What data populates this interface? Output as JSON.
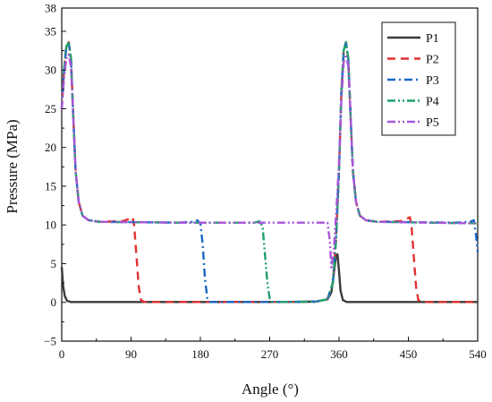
{
  "chart_data": {
    "type": "line",
    "title": "",
    "xlabel": "Angle (°)",
    "ylabel": "Pressure (MPa)",
    "xlim": [
      0,
      540
    ],
    "ylim": [
      -5,
      38
    ],
    "xticks": [
      "0",
      "90",
      "180",
      "270",
      "360",
      "450",
      "540"
    ],
    "yticks": [
      "−5",
      "0",
      "5",
      "10",
      "15",
      "20",
      "25",
      "30",
      "35",
      "38"
    ],
    "legend_position": "top-right",
    "grid": false,
    "series": [
      {
        "name": "P1",
        "color": "#3a3a3a",
        "dash": "solid",
        "points": [
          [
            0,
            4.6
          ],
          [
            2,
            2.0
          ],
          [
            4,
            0.8
          ],
          [
            7,
            0.2
          ],
          [
            12,
            0.05
          ],
          [
            60,
            0.05
          ],
          [
            120,
            0.05
          ],
          [
            200,
            0.05
          ],
          [
            280,
            0.05
          ],
          [
            330,
            0.1
          ],
          [
            345,
            0.4
          ],
          [
            350,
            1.3
          ],
          [
            353,
            3.5
          ],
          [
            356,
            6.0
          ],
          [
            358,
            6.2
          ],
          [
            360,
            4.0
          ],
          [
            362,
            1.5
          ],
          [
            365,
            0.3
          ],
          [
            370,
            0.05
          ],
          [
            420,
            0.05
          ],
          [
            480,
            0.05
          ],
          [
            540,
            0.05
          ]
        ]
      },
      {
        "name": "P2",
        "color": "#e03030",
        "dash": "dashed",
        "points": [
          [
            0,
            25
          ],
          [
            3,
            30
          ],
          [
            6,
            33
          ],
          [
            9,
            33.6
          ],
          [
            12,
            31.5
          ],
          [
            15,
            24
          ],
          [
            18,
            17
          ],
          [
            22,
            13
          ],
          [
            27,
            11.2
          ],
          [
            35,
            10.6
          ],
          [
            50,
            10.4
          ],
          [
            80,
            10.5
          ],
          [
            88,
            10.8
          ],
          [
            92,
            11.0
          ],
          [
            94,
            10.0
          ],
          [
            97,
            6.0
          ],
          [
            100,
            2.0
          ],
          [
            103,
            0.3
          ],
          [
            107,
            0.05
          ],
          [
            200,
            0.05
          ],
          [
            300,
            0.05
          ],
          [
            330,
            0.1
          ],
          [
            345,
            0.4
          ],
          [
            352,
            2.5
          ],
          [
            356,
            8.0
          ],
          [
            360,
            17
          ],
          [
            363,
            27
          ],
          [
            366,
            32.5
          ],
          [
            369,
            33.6
          ],
          [
            372,
            31.5
          ],
          [
            375,
            24
          ],
          [
            378,
            17
          ],
          [
            382,
            13
          ],
          [
            387,
            11.2
          ],
          [
            395,
            10.6
          ],
          [
            410,
            10.4
          ],
          [
            440,
            10.5
          ],
          [
            448,
            10.8
          ],
          [
            452,
            11.0
          ],
          [
            454,
            10.0
          ],
          [
            457,
            6.0
          ],
          [
            460,
            2.0
          ],
          [
            463,
            0.3
          ],
          [
            467,
            0.05
          ],
          [
            540,
            0.05
          ]
        ]
      },
      {
        "name": "P3",
        "color": "#1a66c9",
        "dash": "dashdot",
        "points": [
          [
            0,
            25
          ],
          [
            3,
            30
          ],
          [
            6,
            33
          ],
          [
            9,
            33.6
          ],
          [
            12,
            31.5
          ],
          [
            15,
            24
          ],
          [
            18,
            17
          ],
          [
            22,
            13
          ],
          [
            27,
            11.2
          ],
          [
            35,
            10.6
          ],
          [
            50,
            10.4
          ],
          [
            150,
            10.3
          ],
          [
            170,
            10.4
          ],
          [
            176,
            10.6
          ],
          [
            180,
            10.2
          ],
          [
            183,
            7.5
          ],
          [
            186,
            3.0
          ],
          [
            189,
            0.5
          ],
          [
            192,
            0.05
          ],
          [
            300,
            0.05
          ],
          [
            330,
            0.1
          ],
          [
            345,
            0.4
          ],
          [
            352,
            2.5
          ],
          [
            356,
            8.0
          ],
          [
            360,
            17
          ],
          [
            363,
            27
          ],
          [
            366,
            32.5
          ],
          [
            369,
            33.6
          ],
          [
            372,
            31.5
          ],
          [
            375,
            24
          ],
          [
            378,
            17
          ],
          [
            382,
            13
          ],
          [
            387,
            11.2
          ],
          [
            395,
            10.6
          ],
          [
            410,
            10.4
          ],
          [
            510,
            10.3
          ],
          [
            530,
            10.4
          ],
          [
            535,
            10.6
          ],
          [
            538,
            8.5
          ],
          [
            540,
            6.5
          ]
        ]
      },
      {
        "name": "P4",
        "color": "#1fa06b",
        "dash": "dashdotdot",
        "points": [
          [
            0,
            25
          ],
          [
            3,
            30
          ],
          [
            6,
            33
          ],
          [
            9,
            33.6
          ],
          [
            12,
            31.5
          ],
          [
            15,
            24
          ],
          [
            18,
            17
          ],
          [
            22,
            13
          ],
          [
            27,
            11.2
          ],
          [
            35,
            10.6
          ],
          [
            50,
            10.4
          ],
          [
            150,
            10.3
          ],
          [
            250,
            10.3
          ],
          [
            258,
            10.5
          ],
          [
            261,
            9.5
          ],
          [
            264,
            6.0
          ],
          [
            267,
            2.5
          ],
          [
            270,
            0.5
          ],
          [
            273,
            0.05
          ],
          [
            330,
            0.1
          ],
          [
            345,
            0.4
          ],
          [
            352,
            2.5
          ],
          [
            356,
            8.0
          ],
          [
            360,
            17
          ],
          [
            363,
            27
          ],
          [
            366,
            32.5
          ],
          [
            369,
            33.6
          ],
          [
            372,
            31.5
          ],
          [
            375,
            24
          ],
          [
            378,
            17
          ],
          [
            382,
            13
          ],
          [
            387,
            11.2
          ],
          [
            395,
            10.6
          ],
          [
            410,
            10.4
          ],
          [
            540,
            10.2
          ]
        ]
      },
      {
        "name": "P5",
        "color": "#a855d8",
        "dash": "dashdotdot",
        "points": [
          [
            0,
            25
          ],
          [
            3,
            29
          ],
          [
            6,
            31.5
          ],
          [
            9,
            32
          ],
          [
            12,
            30.5
          ],
          [
            15,
            24
          ],
          [
            18,
            17
          ],
          [
            22,
            13
          ],
          [
            27,
            11.2
          ],
          [
            35,
            10.6
          ],
          [
            50,
            10.4
          ],
          [
            150,
            10.3
          ],
          [
            250,
            10.3
          ],
          [
            345,
            10.3
          ],
          [
            348,
            8.0
          ],
          [
            350,
            4.5
          ],
          [
            353,
            6.5
          ],
          [
            356,
            11
          ],
          [
            360,
            18
          ],
          [
            363,
            26
          ],
          [
            366,
            31
          ],
          [
            369,
            32
          ],
          [
            372,
            30.5
          ],
          [
            375,
            24
          ],
          [
            378,
            17
          ],
          [
            382,
            13
          ],
          [
            387,
            11.2
          ],
          [
            395,
            10.6
          ],
          [
            410,
            10.4
          ],
          [
            540,
            10.2
          ]
        ]
      }
    ]
  }
}
